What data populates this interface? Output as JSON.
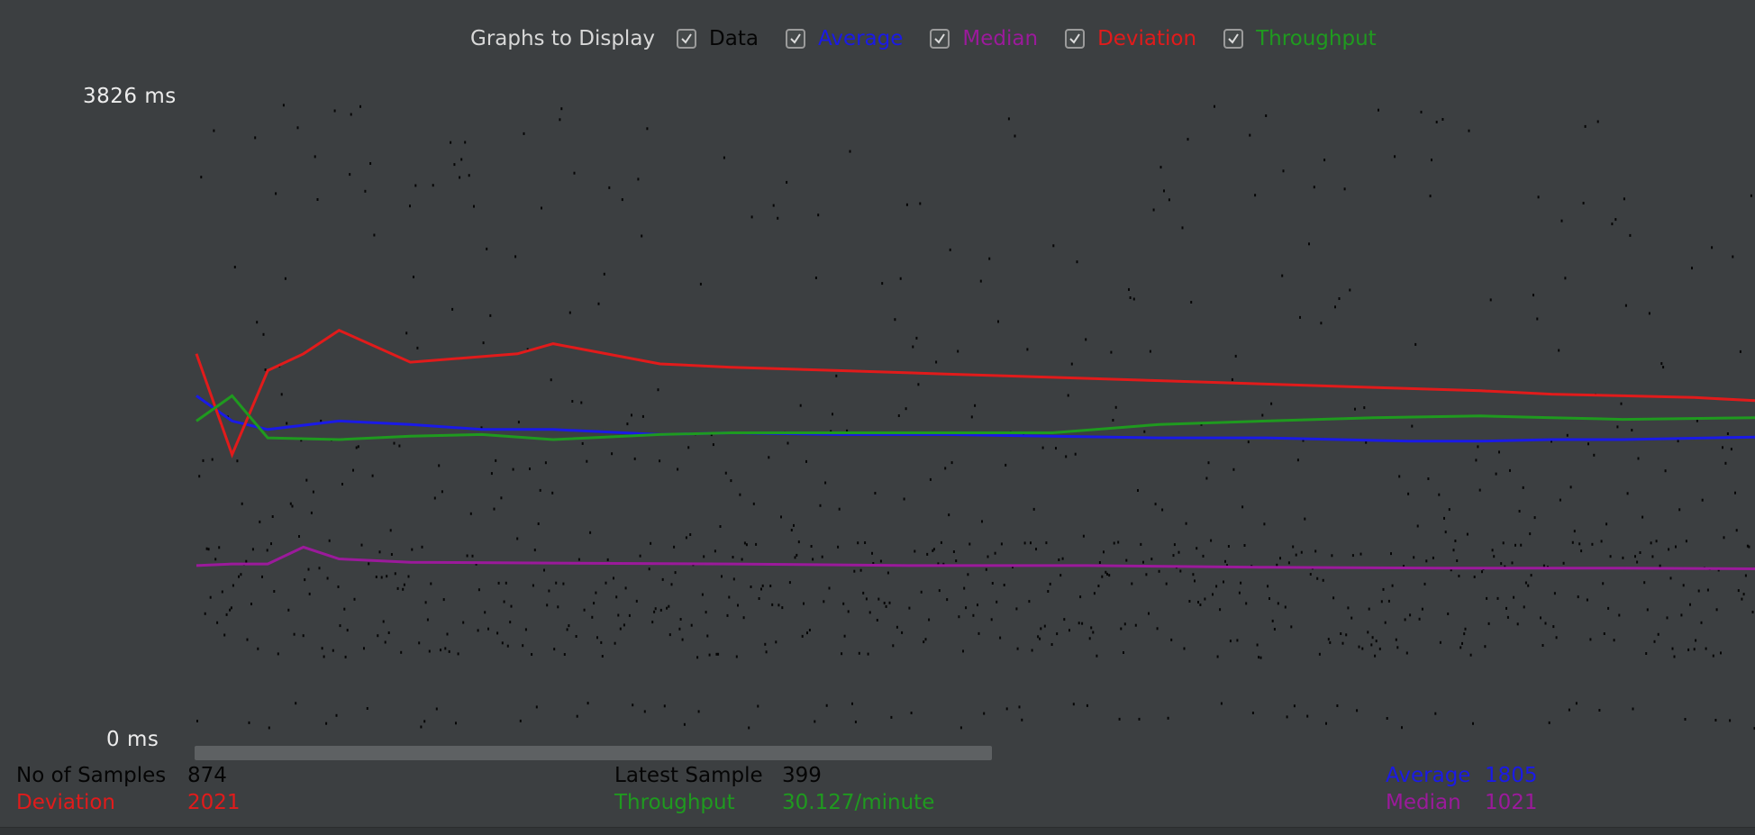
{
  "legend": {
    "title": "Graphs to Display",
    "items": [
      {
        "key": "data",
        "label": "Data",
        "color": "#050505",
        "checked": true
      },
      {
        "key": "average",
        "label": "Average",
        "color": "#1a1ae6",
        "checked": true
      },
      {
        "key": "median",
        "label": "Median",
        "color": "#9b1a9b",
        "checked": true
      },
      {
        "key": "deviation",
        "label": "Deviation",
        "color": "#e11b1b",
        "checked": true
      },
      {
        "key": "throughput",
        "label": "Throughput",
        "color": "#1f9a1f",
        "checked": true
      }
    ]
  },
  "axis": {
    "y_max_label": "3826  ms",
    "y_min_label": "0  ms"
  },
  "stats": {
    "samples_label": "No of Samples",
    "samples_value": "874",
    "deviation_label": "Deviation",
    "deviation_value": "2021",
    "latest_label": "Latest Sample",
    "latest_value": "399",
    "throughput_label": "Throughput",
    "throughput_value": "30.127/minute",
    "average_label": "Average",
    "average_value": "1805",
    "median_label": "Median",
    "median_value": "1021"
  },
  "chart_data": {
    "type": "line",
    "ylim": [
      0,
      3826
    ],
    "yunit": "ms",
    "series": [
      {
        "name": "Average",
        "color": "#1a1ae6",
        "x": [
          0,
          20,
          40,
          80,
          120,
          160,
          200,
          260,
          300,
          360,
          420,
          480,
          540,
          600,
          680,
          720,
          760,
          800,
          874
        ],
        "values": [
          2050,
          1900,
          1850,
          1900,
          1880,
          1850,
          1850,
          1820,
          1830,
          1820,
          1820,
          1810,
          1800,
          1800,
          1780,
          1780,
          1790,
          1790,
          1805
        ]
      },
      {
        "name": "Median",
        "color": "#9b1a9b",
        "x": [
          0,
          20,
          40,
          60,
          80,
          120,
          200,
          300,
          400,
          500,
          600,
          700,
          800,
          874
        ],
        "values": [
          1040,
          1050,
          1050,
          1150,
          1080,
          1060,
          1055,
          1050,
          1040,
          1040,
          1030,
          1025,
          1025,
          1021
        ]
      },
      {
        "name": "Deviation",
        "color": "#e11b1b",
        "x": [
          0,
          20,
          40,
          60,
          80,
          120,
          180,
          200,
          260,
          300,
          360,
          420,
          480,
          540,
          600,
          660,
          720,
          760,
          800,
          840,
          874
        ],
        "values": [
          2300,
          1700,
          2200,
          2300,
          2440,
          2250,
          2300,
          2360,
          2240,
          2220,
          2200,
          2180,
          2160,
          2140,
          2120,
          2100,
          2080,
          2060,
          2050,
          2040,
          2021
        ]
      },
      {
        "name": "Throughput",
        "color": "#1f9a1f",
        "x": [
          0,
          20,
          40,
          80,
          120,
          160,
          200,
          260,
          300,
          360,
          420,
          480,
          540,
          600,
          660,
          720,
          760,
          800,
          874
        ],
        "values": [
          1900,
          2050,
          1800,
          1790,
          1810,
          1820,
          1790,
          1820,
          1830,
          1830,
          1830,
          1830,
          1880,
          1900,
          1920,
          1930,
          1920,
          1910,
          1920
        ]
      }
    ]
  }
}
